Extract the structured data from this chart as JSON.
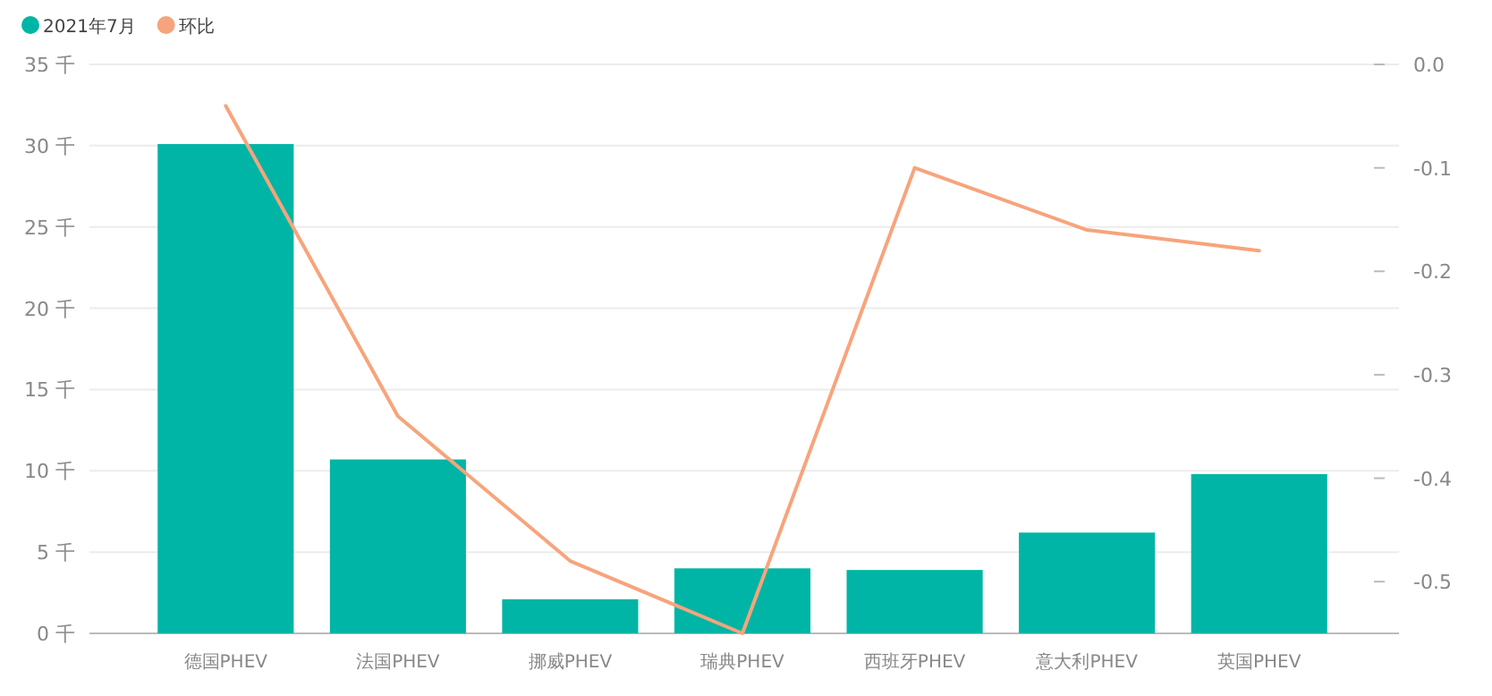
{
  "chart_data": {
    "type": "bar",
    "categories": [
      "德国PHEV",
      "法国PHEV",
      "挪威PHEV",
      "瑞典PHEV",
      "西班牙PHEV",
      "意大利PHEV",
      "英国PHEV"
    ],
    "series": [
      {
        "name": "2021年7月",
        "color": "#00b5a5",
        "values": [
          30.1,
          10.7,
          2.1,
          4.0,
          3.9,
          6.2,
          9.8
        ]
      },
      {
        "name": "环比",
        "type": "line",
        "axis": "y2",
        "color": "#f7a47c",
        "values": [
          -0.04,
          -0.34,
          -0.48,
          -0.55,
          -0.1,
          -0.16,
          -0.18
        ]
      }
    ],
    "ylim": [
      0,
      35
    ],
    "yticks": [
      {
        "value": 0,
        "label": "0 千"
      },
      {
        "value": 5,
        "label": "5 千"
      },
      {
        "value": 10,
        "label": "10 千"
      },
      {
        "value": 15,
        "label": "15 千"
      },
      {
        "value": 20,
        "label": "20 千"
      },
      {
        "value": 25,
        "label": "25 千"
      },
      {
        "value": 30,
        "label": "30 千"
      },
      {
        "value": 35,
        "label": "35 千"
      }
    ],
    "y2lim": [
      -0.55,
      0
    ],
    "y2ticks": [
      {
        "value": 0,
        "label": "0.0"
      },
      -0.1,
      -0.2,
      -0.3,
      -0.4,
      -0.5
    ],
    "grid": "y",
    "legend": "top left"
  }
}
